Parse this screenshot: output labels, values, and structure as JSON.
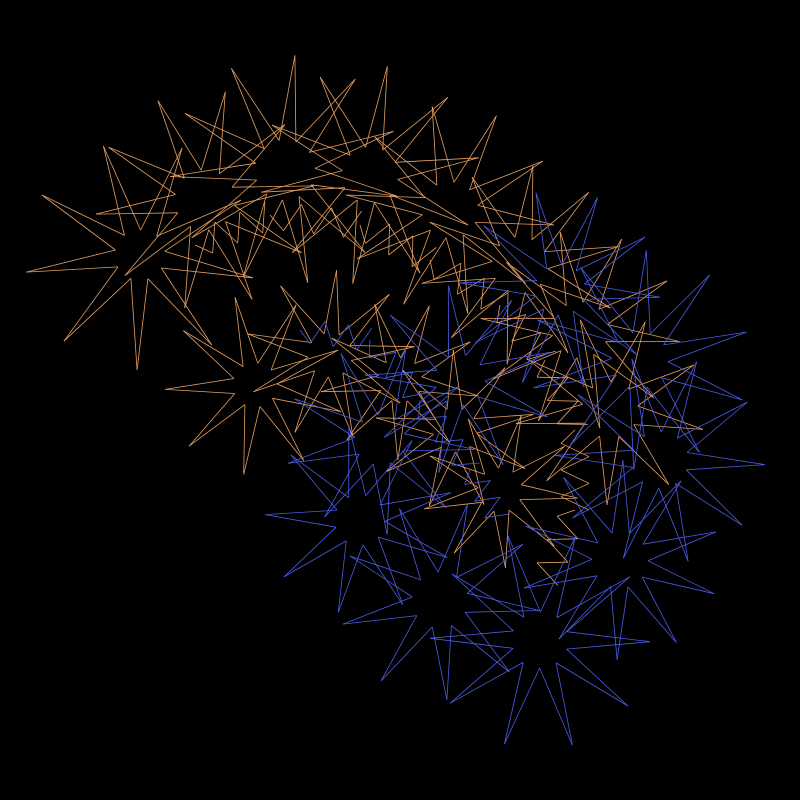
{
  "artwork": {
    "background_color": "#000000",
    "palette": {
      "orange_stroke": "#E8A060",
      "blue_stroke": "#4A5CE8"
    },
    "description_tags": [
      "string-art",
      "spiral",
      "zigzag-star-pattern"
    ]
  }
}
